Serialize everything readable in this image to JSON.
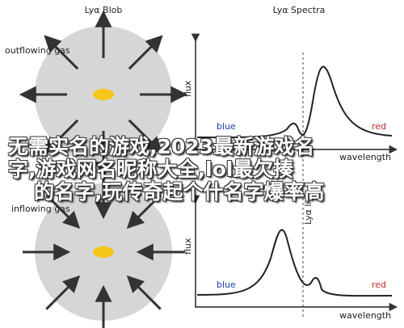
{
  "panels": {
    "blob_title": "Lyα Blob",
    "spectra_title": "Lyα Spectra",
    "outflow_label": "outflowing gas",
    "inflow_label": "inflowing gas",
    "top_plot": {
      "ylabel": "flux",
      "xlabel": "wavelength",
      "blue": "blue",
      "red": "red"
    },
    "bottom_plot": {
      "ylabel": "flux",
      "xlabel": "wavelength",
      "blue": "blue",
      "red": "red"
    },
    "line_label": "Lyα line"
  },
  "overlay": {
    "lines": [
      "无需实名的游戏,2023最新游戏名",
      "字,游戏网名昵称大全,lol最欠揍",
      "的名字,玩传奇起个什名字爆率高"
    ]
  }
}
